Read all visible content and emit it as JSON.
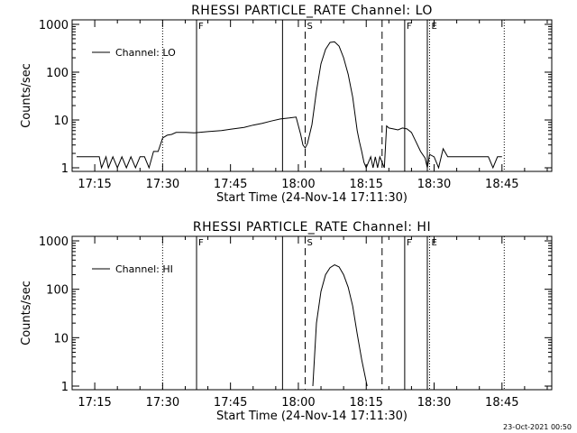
{
  "chart_data": [
    {
      "type": "line",
      "title": "RHESSI PARTICLE_RATE Channel: LO",
      "xlabel": "Start Time (24-Nov-14 17:11:30)",
      "ylabel": "Counts/sec",
      "x_tick_labels": [
        "17:15",
        "17:30",
        "17:45",
        "18:00",
        "18:15",
        "18:30",
        "18:45"
      ],
      "x_tick_values_min": [
        15,
        30,
        45,
        60,
        75,
        90,
        105
      ],
      "xlim_min": [
        10,
        116
      ],
      "y_scale": "log",
      "ylim": [
        1,
        1000
      ],
      "y_tick_labels": [
        "1",
        "10",
        "100",
        "1000"
      ],
      "legend": {
        "position": "top-left",
        "entries": [
          "Channel: LO"
        ]
      },
      "series": [
        {
          "name": "Channel: LO",
          "x_min": [
            11,
            16,
            16.5,
            17.5,
            18,
            19,
            20,
            21,
            22,
            23,
            24,
            25,
            26,
            27,
            28,
            29,
            30,
            31,
            32,
            33,
            35,
            37,
            40,
            43,
            45,
            48,
            50,
            52,
            54,
            56,
            58,
            59.5,
            60.5,
            61,
            61.5,
            62,
            63,
            64,
            65,
            66,
            67,
            68,
            69,
            70,
            71,
            72,
            73,
            73.5,
            74,
            74.5,
            75,
            76,
            76.5,
            77,
            77.5,
            78,
            79,
            79.5,
            80,
            81,
            82,
            83,
            84,
            85,
            86,
            87,
            88,
            88.5,
            89,
            90,
            91,
            92,
            93,
            94,
            95,
            96,
            97,
            98,
            99,
            100,
            101,
            102,
            103,
            104,
            105
          ],
          "y": [
            1.7,
            1.7,
            1,
            1.7,
            1,
            1.7,
            1,
            1.7,
            1,
            1.7,
            1,
            1.7,
            1.7,
            1,
            2.2,
            2.2,
            4.2,
            4.8,
            5.0,
            5.5,
            5.5,
            5.4,
            5.7,
            6.0,
            6.4,
            7.0,
            7.8,
            8.5,
            9.5,
            10.5,
            11,
            11.5,
            5.0,
            3.0,
            2.6,
            3.2,
            8,
            40,
            150,
            300,
            420,
            430,
            350,
            200,
            90,
            30,
            6,
            3.5,
            2.2,
            1.3,
            1.0,
            1.7,
            1.0,
            1.7,
            1.0,
            1.7,
            1.0,
            7.5,
            6.8,
            6.5,
            6.2,
            6.8,
            6.5,
            5.5,
            3.5,
            2.2,
            1.6,
            1.0,
            1.9,
            1.7,
            1.0,
            2.5,
            1.7,
            1.7,
            1.7,
            1.7,
            1.7,
            1.7,
            1.7,
            1.7,
            1.7,
            1.7,
            1.0,
            1.7,
            1.7
          ],
          "color": "#000000"
        }
      ],
      "annotations": [
        {
          "label": "",
          "x_min": 30,
          "style": "dotted"
        },
        {
          "label": "F",
          "x_min": 37.5,
          "style": "solid"
        },
        {
          "label": "",
          "x_min": 56.5,
          "style": "solid"
        },
        {
          "label": "S",
          "x_min": 61.5,
          "style": "dashed"
        },
        {
          "label": "",
          "x_min": 78.5,
          "style": "dashed"
        },
        {
          "label": "F",
          "x_min": 83.5,
          "style": "solid"
        },
        {
          "label": "",
          "x_min": 88.5,
          "style": "solid"
        },
        {
          "label": "E",
          "x_min": 89,
          "style": "dotted"
        },
        {
          "label": "",
          "x_min": 105.5,
          "style": "dotted"
        }
      ]
    },
    {
      "type": "line",
      "title": "RHESSI PARTICLE_RATE Channel: HI",
      "xlabel": "Start Time (24-Nov-14 17:11:30)",
      "ylabel": "Counts/sec",
      "x_tick_labels": [
        "17:15",
        "17:30",
        "17:45",
        "18:00",
        "18:15",
        "18:30",
        "18:45"
      ],
      "x_tick_values_min": [
        15,
        30,
        45,
        60,
        75,
        90,
        105
      ],
      "xlim_min": [
        10,
        116
      ],
      "y_scale": "log",
      "ylim": [
        1,
        1000
      ],
      "y_tick_labels": [
        "1",
        "10",
        "100",
        "1000"
      ],
      "legend": {
        "position": "top-left",
        "entries": [
          "Channel: HI"
        ]
      },
      "series": [
        {
          "name": "Channel: HI",
          "x_min": [
            63.2,
            64,
            65,
            66,
            67,
            68,
            69,
            70,
            71,
            72,
            73,
            74,
            75.2
          ],
          "y": [
            1.0,
            20,
            90,
            200,
            280,
            320,
            290,
            200,
            110,
            45,
            12,
            3.5,
            1.0
          ],
          "color": "#000000"
        }
      ],
      "annotations": [
        {
          "label": "",
          "x_min": 30,
          "style": "dotted"
        },
        {
          "label": "F",
          "x_min": 37.5,
          "style": "solid"
        },
        {
          "label": "",
          "x_min": 56.5,
          "style": "solid"
        },
        {
          "label": "S",
          "x_min": 61.5,
          "style": "dashed"
        },
        {
          "label": "",
          "x_min": 78.5,
          "style": "dashed"
        },
        {
          "label": "F",
          "x_min": 83.5,
          "style": "solid"
        },
        {
          "label": "",
          "x_min": 88.5,
          "style": "solid"
        },
        {
          "label": "E",
          "x_min": 89,
          "style": "dotted"
        },
        {
          "label": "",
          "x_min": 105.5,
          "style": "dotted"
        }
      ]
    }
  ],
  "footer": {
    "stamp": "23-Oct-2021 00:50"
  }
}
